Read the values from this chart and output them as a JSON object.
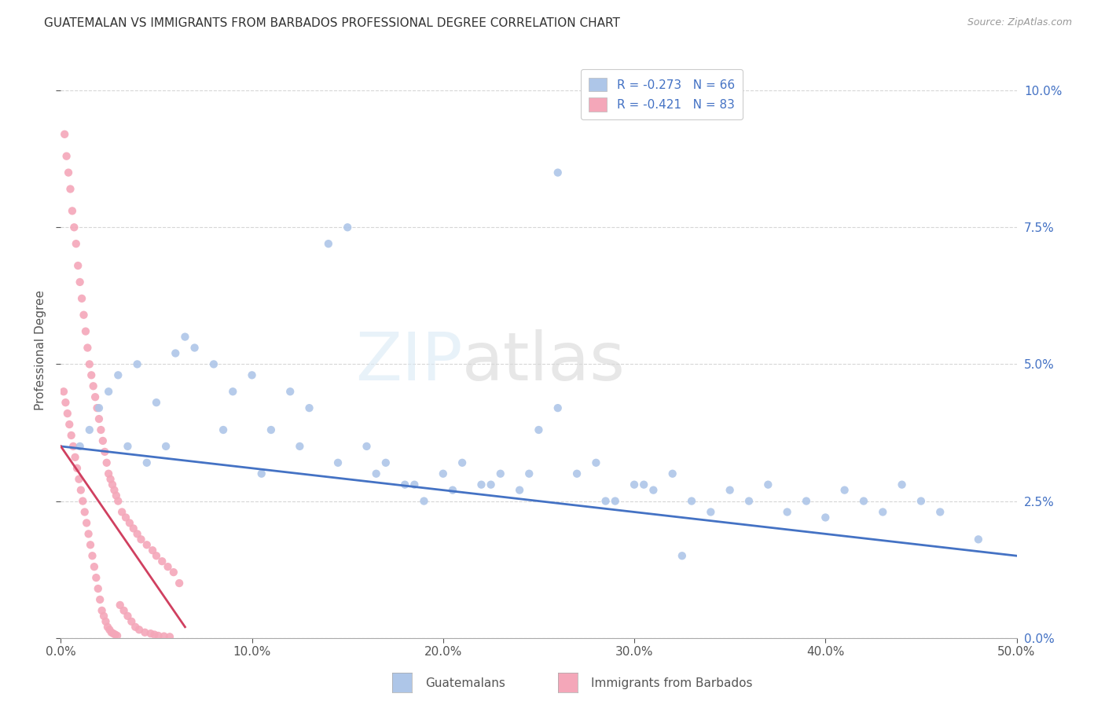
{
  "title": "GUATEMALAN VS IMMIGRANTS FROM BARBADOS PROFESSIONAL DEGREE CORRELATION CHART",
  "source": "Source: ZipAtlas.com",
  "ylabel": "Professional Degree",
  "xmin": 0.0,
  "xmax": 50.0,
  "ymin": 0.0,
  "ymax": 10.5,
  "xticks": [
    0,
    10,
    20,
    30,
    40,
    50
  ],
  "xticklabels": [
    "0.0%",
    "10.0%",
    "20.0%",
    "30.0%",
    "40.0%",
    "50.0%"
  ],
  "yticks": [
    0.0,
    2.5,
    5.0,
    7.5,
    10.0
  ],
  "yticklabels_right": [
    "0.0%",
    "2.5%",
    "5.0%",
    "7.5%",
    "10.0%"
  ],
  "legend_label_blue": "R = -0.273   N = 66",
  "legend_label_pink": "R = -0.421   N = 83",
  "bottom_label_blue": "Guatemalans",
  "bottom_label_pink": "Immigrants from Barbados",
  "blue_scatter_x": [
    1.0,
    1.5,
    2.0,
    2.5,
    3.0,
    4.0,
    5.0,
    5.5,
    6.0,
    7.0,
    8.0,
    9.0,
    10.0,
    11.0,
    12.0,
    13.0,
    14.0,
    15.0,
    16.0,
    17.0,
    18.0,
    19.0,
    20.0,
    21.0,
    22.0,
    23.0,
    24.0,
    25.0,
    26.0,
    27.0,
    28.0,
    29.0,
    30.0,
    31.0,
    32.0,
    33.0,
    34.0,
    35.0,
    36.0,
    37.0,
    38.0,
    39.0,
    40.0,
    41.0,
    42.0,
    43.0,
    44.0,
    45.0,
    46.0,
    48.0,
    3.5,
    4.5,
    6.5,
    8.5,
    10.5,
    12.5,
    14.5,
    16.5,
    18.5,
    20.5,
    22.5,
    24.5,
    26.0,
    28.5,
    30.5,
    32.5
  ],
  "blue_scatter_y": [
    3.5,
    3.8,
    4.2,
    4.5,
    4.8,
    5.0,
    4.3,
    3.5,
    5.2,
    5.3,
    5.0,
    4.5,
    4.8,
    3.8,
    4.5,
    4.2,
    7.2,
    7.5,
    3.5,
    3.2,
    2.8,
    2.5,
    3.0,
    3.2,
    2.8,
    3.0,
    2.7,
    3.8,
    8.5,
    3.0,
    3.2,
    2.5,
    2.8,
    2.7,
    3.0,
    2.5,
    2.3,
    2.7,
    2.5,
    2.8,
    2.3,
    2.5,
    2.2,
    2.7,
    2.5,
    2.3,
    2.8,
    2.5,
    2.3,
    1.8,
    3.5,
    3.2,
    5.5,
    3.8,
    3.0,
    3.5,
    3.2,
    3.0,
    2.8,
    2.7,
    2.8,
    3.0,
    4.2,
    2.5,
    2.8,
    1.5
  ],
  "pink_scatter_x": [
    0.2,
    0.3,
    0.4,
    0.5,
    0.6,
    0.7,
    0.8,
    0.9,
    1.0,
    1.1,
    1.2,
    1.3,
    1.4,
    1.5,
    1.6,
    1.7,
    1.8,
    1.9,
    2.0,
    2.1,
    2.2,
    2.3,
    2.4,
    2.5,
    2.6,
    2.7,
    2.8,
    2.9,
    3.0,
    3.2,
    3.4,
    3.6,
    3.8,
    4.0,
    4.2,
    4.5,
    4.8,
    5.0,
    5.3,
    5.6,
    5.9,
    6.2,
    0.15,
    0.25,
    0.35,
    0.45,
    0.55,
    0.65,
    0.75,
    0.85,
    0.95,
    1.05,
    1.15,
    1.25,
    1.35,
    1.45,
    1.55,
    1.65,
    1.75,
    1.85,
    1.95,
    2.05,
    2.15,
    2.25,
    2.35,
    2.45,
    2.55,
    2.65,
    2.75,
    2.85,
    2.95,
    3.1,
    3.3,
    3.5,
    3.7,
    3.9,
    4.1,
    4.4,
    4.7,
    4.9,
    5.1,
    5.4,
    5.7
  ],
  "pink_scatter_y": [
    9.2,
    8.8,
    8.5,
    8.2,
    7.8,
    7.5,
    7.2,
    6.8,
    6.5,
    6.2,
    5.9,
    5.6,
    5.3,
    5.0,
    4.8,
    4.6,
    4.4,
    4.2,
    4.0,
    3.8,
    3.6,
    3.4,
    3.2,
    3.0,
    2.9,
    2.8,
    2.7,
    2.6,
    2.5,
    2.3,
    2.2,
    2.1,
    2.0,
    1.9,
    1.8,
    1.7,
    1.6,
    1.5,
    1.4,
    1.3,
    1.2,
    1.0,
    4.5,
    4.3,
    4.1,
    3.9,
    3.7,
    3.5,
    3.3,
    3.1,
    2.9,
    2.7,
    2.5,
    2.3,
    2.1,
    1.9,
    1.7,
    1.5,
    1.3,
    1.1,
    0.9,
    0.7,
    0.5,
    0.4,
    0.3,
    0.2,
    0.15,
    0.1,
    0.08,
    0.06,
    0.04,
    0.6,
    0.5,
    0.4,
    0.3,
    0.2,
    0.15,
    0.1,
    0.08,
    0.06,
    0.04,
    0.03,
    0.02
  ],
  "blue_line_color": "#4472c4",
  "pink_line_color": "#d04060",
  "scatter_blue_color": "#aec6e8",
  "scatter_pink_color": "#f4a7b9",
  "background_color": "#ffffff",
  "grid_color": "#cccccc",
  "right_axis_color": "#4472c4"
}
